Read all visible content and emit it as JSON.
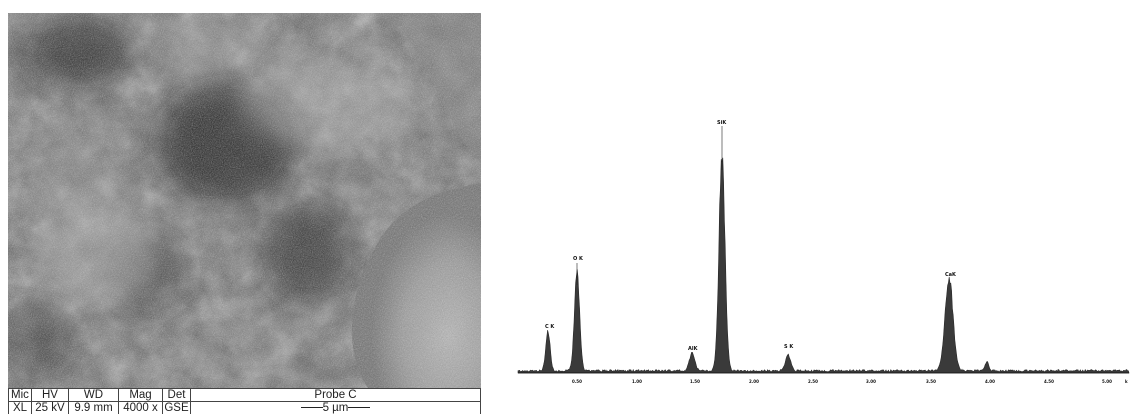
{
  "sem": {
    "header_labels": [
      "Mic",
      "HV",
      "WD",
      "Mag",
      "Det"
    ],
    "values": [
      "XL",
      "25 kV",
      "9.9 mm",
      "4000 x",
      "GSE"
    ],
    "probe": "Probe C",
    "scale_bar": "5 µm"
  },
  "eds": {
    "x_ticks": [
      "0.50",
      "1.00",
      "1.50",
      "2.00",
      "2.50",
      "3.00",
      "3.50",
      "4.00",
      "4.50",
      "5.00",
      "k"
    ],
    "peak_labels": [
      "C K",
      "O K",
      "AlK",
      "SiK",
      "S K",
      "CaK"
    ]
  }
}
